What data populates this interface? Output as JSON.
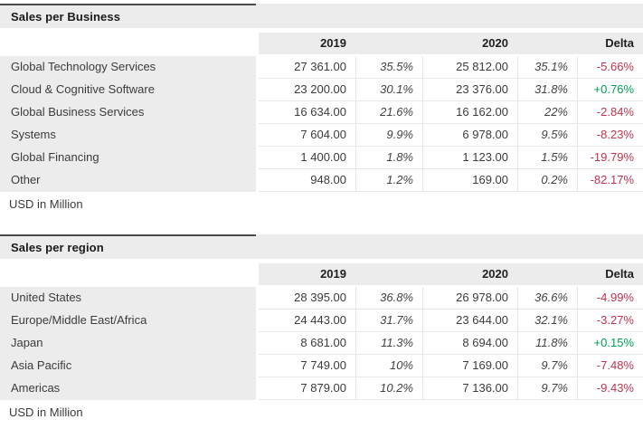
{
  "colors": {
    "delta_negative": "#c0334d",
    "delta_positive": "#00a050",
    "header_background": "#ececec",
    "title_accent_border": "#4a4a4a"
  },
  "chart_data": [
    {
      "type": "table",
      "title": "Sales per Business",
      "unit_note": "USD in Million",
      "columns": {
        "year1": "2019",
        "year2": "2020",
        "delta": "Delta"
      },
      "rows": [
        {
          "label": "Global Technology Services",
          "v2019": "27 361.00",
          "p2019": "35.5%",
          "v2020": "25 812.00",
          "p2020": "35.1%",
          "delta": "-5.66%"
        },
        {
          "label": "Cloud & Cognitive Software",
          "v2019": "23 200.00",
          "p2019": "30.1%",
          "v2020": "23 376.00",
          "p2020": "31.8%",
          "delta": "+0.76%"
        },
        {
          "label": "Global Business Services",
          "v2019": "16 634.00",
          "p2019": "21.6%",
          "v2020": "16 162.00",
          "p2020": "22%",
          "delta": "-2.84%"
        },
        {
          "label": "Systems",
          "v2019": "7 604.00",
          "p2019": "9.9%",
          "v2020": "6 978.00",
          "p2020": "9.5%",
          "delta": "-8.23%"
        },
        {
          "label": "Global Financing",
          "v2019": "1 400.00",
          "p2019": "1.8%",
          "v2020": "1 123.00",
          "p2020": "1.5%",
          "delta": "-19.79%"
        },
        {
          "label": "Other",
          "v2019": "948.00",
          "p2019": "1.2%",
          "v2020": "169.00",
          "p2020": "0.2%",
          "delta": "-82.17%"
        }
      ],
      "numeric": {
        "values_2019": [
          27361.0,
          23200.0,
          16634.0,
          7604.0,
          1400.0,
          948.0
        ],
        "share_2019_pct": [
          35.5,
          30.1,
          21.6,
          9.9,
          1.8,
          1.2
        ],
        "values_2020": [
          25812.0,
          23376.0,
          16162.0,
          6978.0,
          1123.0,
          169.0
        ],
        "share_2020_pct": [
          35.1,
          31.8,
          22,
          9.5,
          1.5,
          0.2
        ],
        "delta_pct": [
          -5.66,
          0.76,
          -2.84,
          -8.23,
          -19.79,
          -82.17
        ]
      }
    },
    {
      "type": "table",
      "title": "Sales per region",
      "unit_note": "USD in Million",
      "columns": {
        "year1": "2019",
        "year2": "2020",
        "delta": "Delta"
      },
      "rows": [
        {
          "label": "United States",
          "v2019": "28 395.00",
          "p2019": "36.8%",
          "v2020": "26 978.00",
          "p2020": "36.6%",
          "delta": "-4.99%"
        },
        {
          "label": "Europe/Middle East/Africa",
          "v2019": "24 443.00",
          "p2019": "31.7%",
          "v2020": "23 644.00",
          "p2020": "32.1%",
          "delta": "-3.27%"
        },
        {
          "label": "Japan",
          "v2019": "8 681.00",
          "p2019": "11.3%",
          "v2020": "8 694.00",
          "p2020": "11.8%",
          "delta": "+0.15%"
        },
        {
          "label": "Asia Pacific",
          "v2019": "7 749.00",
          "p2019": "10%",
          "v2020": "7 169.00",
          "p2020": "9.7%",
          "delta": "-7.48%"
        },
        {
          "label": "Americas",
          "v2019": "7 879.00",
          "p2019": "10.2%",
          "v2020": "7 136.00",
          "p2020": "9.7%",
          "delta": "-9.43%"
        }
      ],
      "numeric": {
        "values_2019": [
          28395.0,
          24443.0,
          8681.0,
          7749.0,
          7879.0
        ],
        "share_2019_pct": [
          36.8,
          31.7,
          11.3,
          10,
          10.2
        ],
        "values_2020": [
          26978.0,
          23644.0,
          8694.0,
          7169.0,
          7136.0
        ],
        "share_2020_pct": [
          36.6,
          32.1,
          11.8,
          9.7,
          9.7
        ],
        "delta_pct": [
          -4.99,
          -3.27,
          0.15,
          -7.48,
          -9.43
        ]
      }
    }
  ]
}
